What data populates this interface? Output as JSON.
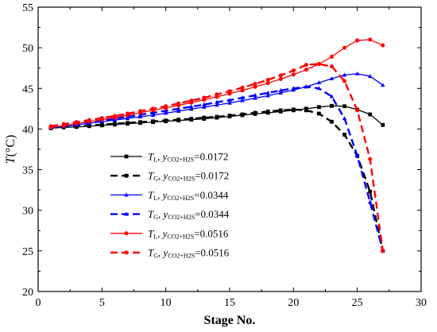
{
  "chart_data": {
    "type": "line",
    "xlabel": "Stage No.",
    "ylabel": {
      "main": "T",
      "unit": "(°C)"
    },
    "xlim": [
      0,
      30
    ],
    "ylim": [
      20,
      55
    ],
    "xticks": [
      "0",
      "5",
      "10",
      "15",
      "20",
      "25",
      "30"
    ],
    "yticks": [
      "20",
      "25",
      "30",
      "35",
      "40",
      "45",
      "50",
      "55"
    ],
    "grid": false,
    "legend_position": "lower-left",
    "series": [
      {
        "name": "TL, yCO2+H2S=0.0172",
        "label": {
          "main": "T",
          "sub": "L",
          "sep": ",  ",
          "var": "y",
          "varsub": "CO2+H2S",
          "value": "=0.0172"
        },
        "color": "#000000",
        "dash": "solid",
        "marker": "square",
        "x": [
          1,
          2,
          3,
          4,
          5,
          6,
          7,
          8,
          9,
          10,
          11,
          12,
          13,
          14,
          15,
          16,
          17,
          18,
          19,
          20,
          21,
          22,
          23,
          24,
          25,
          26,
          27
        ],
        "y": [
          40.1,
          40.2,
          40.25,
          40.35,
          40.45,
          40.55,
          40.65,
          40.75,
          40.85,
          40.95,
          41.05,
          41.15,
          41.25,
          41.4,
          41.55,
          41.7,
          41.85,
          42.0,
          42.15,
          42.3,
          42.5,
          42.7,
          42.85,
          42.8,
          42.4,
          41.8,
          40.5
        ]
      },
      {
        "name": "TG, yCO2+H2S=0.0172",
        "label": {
          "main": "T",
          "sub": "G",
          "sep": ",  ",
          "var": "y",
          "varsub": "CO2+H2S",
          "value": "=0.0172"
        },
        "color": "#000000",
        "dash": "dashed",
        "marker": "square",
        "x": [
          1,
          2,
          3,
          4,
          5,
          6,
          7,
          8,
          9,
          10,
          11,
          12,
          13,
          14,
          15,
          16,
          17,
          18,
          19,
          20,
          21,
          22,
          23,
          24,
          25,
          26,
          27
        ],
        "y": [
          40.2,
          40.3,
          40.35,
          40.45,
          40.55,
          40.65,
          40.75,
          40.85,
          40.95,
          41.05,
          41.15,
          41.25,
          41.4,
          41.5,
          41.65,
          41.8,
          42.0,
          42.15,
          42.3,
          42.4,
          42.3,
          41.9,
          40.9,
          39.3,
          36.7,
          32.3,
          25.0
        ]
      },
      {
        "name": "TL, yCO2+H2S=0.0344",
        "label": {
          "main": "T",
          "sub": "L",
          "sep": ",  ",
          "var": "y",
          "varsub": "CO2+H2S",
          "value": "=0.0344"
        },
        "color": "#0000ff",
        "dash": "solid",
        "marker": "triangle",
        "x": [
          1,
          2,
          3,
          4,
          5,
          6,
          7,
          8,
          9,
          10,
          11,
          12,
          13,
          14,
          15,
          16,
          17,
          18,
          19,
          20,
          21,
          22,
          23,
          24,
          25,
          26,
          27
        ],
        "y": [
          40.15,
          40.3,
          40.5,
          40.7,
          40.9,
          41.1,
          41.3,
          41.5,
          41.7,
          41.95,
          42.2,
          42.45,
          42.7,
          42.95,
          43.2,
          43.5,
          43.8,
          44.1,
          44.45,
          44.8,
          45.2,
          45.7,
          46.2,
          46.65,
          46.8,
          46.5,
          45.4
        ]
      },
      {
        "name": "TG, yCO2+H2S=0.0344",
        "label": {
          "main": "T",
          "sub": "G",
          "sep": ",  ",
          "var": "y",
          "varsub": "CO2+H2S",
          "value": "=0.0344"
        },
        "color": "#0000ff",
        "dash": "dashed",
        "marker": "triangle",
        "x": [
          1,
          2,
          3,
          4,
          5,
          6,
          7,
          8,
          9,
          10,
          11,
          12,
          13,
          14,
          15,
          16,
          17,
          18,
          19,
          20,
          21,
          22,
          23,
          24,
          25,
          26,
          27
        ],
        "y": [
          40.3,
          40.45,
          40.65,
          40.85,
          41.05,
          41.3,
          41.5,
          41.75,
          42.0,
          42.25,
          42.5,
          42.75,
          43.0,
          43.3,
          43.55,
          43.85,
          44.15,
          44.45,
          44.75,
          45.0,
          45.2,
          45.0,
          44.0,
          41.3,
          36.7,
          31.0,
          25.0
        ]
      },
      {
        "name": "TL, yCO2+H2S=0.0516",
        "label": {
          "main": "T",
          "sub": "L",
          "sep": ",  ",
          "var": "y",
          "varsub": "CO2+H2S",
          "value": "=0.0516"
        },
        "color": "#ff0000",
        "dash": "solid",
        "marker": "circle",
        "x": [
          1,
          2,
          3,
          4,
          5,
          6,
          7,
          8,
          9,
          10,
          11,
          12,
          13,
          14,
          15,
          16,
          17,
          18,
          19,
          20,
          21,
          22,
          23,
          24,
          25,
          26,
          27
        ],
        "y": [
          40.2,
          40.4,
          40.65,
          40.9,
          41.15,
          41.4,
          41.7,
          42.0,
          42.3,
          42.6,
          42.9,
          43.25,
          43.6,
          43.95,
          44.35,
          44.75,
          45.2,
          45.65,
          46.15,
          46.7,
          47.3,
          48.0,
          48.9,
          50.0,
          50.9,
          51.0,
          50.3
        ]
      },
      {
        "name": "TG, yCO2+H2S=0.0516",
        "label": {
          "main": "T",
          "sub": "G",
          "sep": ",  ",
          "var": "y",
          "varsub": "CO2+H2S",
          "value": "=0.0516"
        },
        "color": "#ff0000",
        "dash": "dashed",
        "marker": "circle",
        "x": [
          1,
          2,
          3,
          4,
          5,
          6,
          7,
          8,
          9,
          10,
          11,
          12,
          13,
          14,
          15,
          16,
          17,
          18,
          19,
          20,
          21,
          22,
          23,
          24,
          25,
          26,
          27
        ],
        "y": [
          40.35,
          40.6,
          40.85,
          41.1,
          41.35,
          41.6,
          41.9,
          42.2,
          42.5,
          42.8,
          43.15,
          43.5,
          43.85,
          44.25,
          44.65,
          45.1,
          45.55,
          46.05,
          46.6,
          47.2,
          47.9,
          48.0,
          47.7,
          45.9,
          42.3,
          36.3,
          25.0
        ]
      }
    ]
  }
}
